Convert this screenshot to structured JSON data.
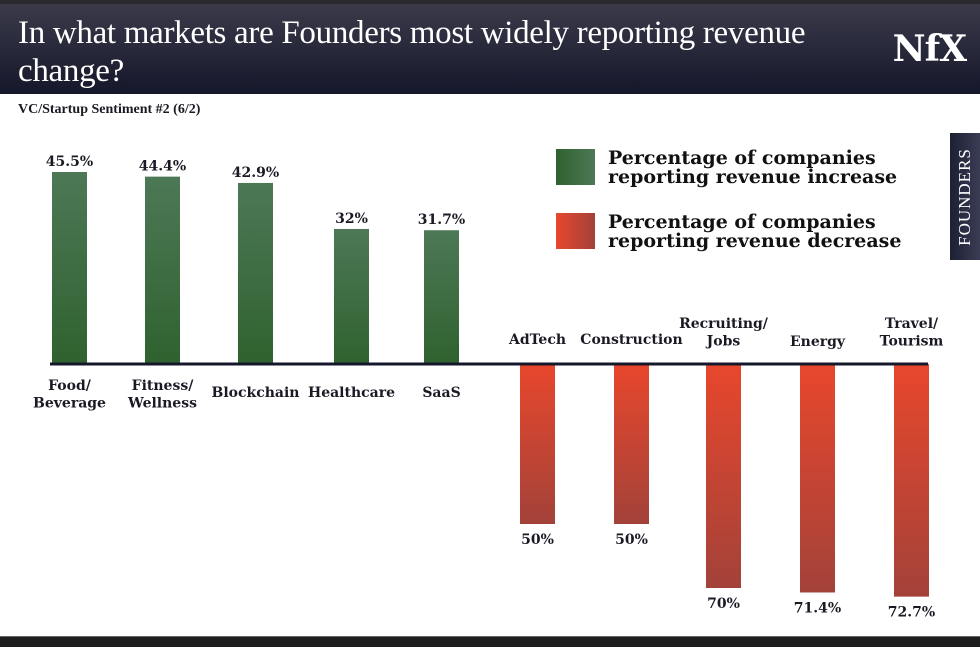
{
  "header": {
    "title": "In what markets are Founders most widely reporting revenue change?",
    "logo": "NfX"
  },
  "subtitle": "VC/Startup Sentiment #2 (6/2)",
  "side_tab": "FOUNDERS",
  "colors": {
    "increase": "#3a6b3f",
    "decrease": "#e04a2e",
    "axis": "#15172a"
  },
  "legend": [
    {
      "label": "Percentage of companies reporting revenue increase"
    },
    {
      "label": "Percentage of companies reporting revenue decrease"
    }
  ],
  "chart_data": {
    "type": "bar",
    "title": "In what markets are Founders most widely reporting revenue change?",
    "subtitle": "VC/Startup Sentiment #2 (6/2)",
    "xlabel": "",
    "ylabel": "",
    "grid": false,
    "legend_position": "top-right",
    "series": [
      {
        "name": "Percentage of companies reporting revenue increase",
        "direction": "up",
        "categories": [
          "Food/\nBeverage",
          "Fitness/\nWellness",
          "Blockchain",
          "Healthcare",
          "SaaS"
        ],
        "values": [
          45.5,
          44.4,
          42.9,
          32,
          31.7
        ],
        "labels": [
          "45.5%",
          "44.4%",
          "42.9%",
          "32%",
          "31.7%"
        ]
      },
      {
        "name": "Percentage of companies reporting revenue decrease",
        "direction": "down",
        "categories": [
          "AdTech",
          "Construction",
          "Recruiting/\nJobs",
          "Energy",
          "Travel/\nTourism"
        ],
        "values": [
          50,
          50,
          70,
          71.4,
          72.7
        ],
        "labels": [
          "50%",
          "50%",
          "70%",
          "71.4%",
          "72.7%"
        ]
      }
    ]
  }
}
